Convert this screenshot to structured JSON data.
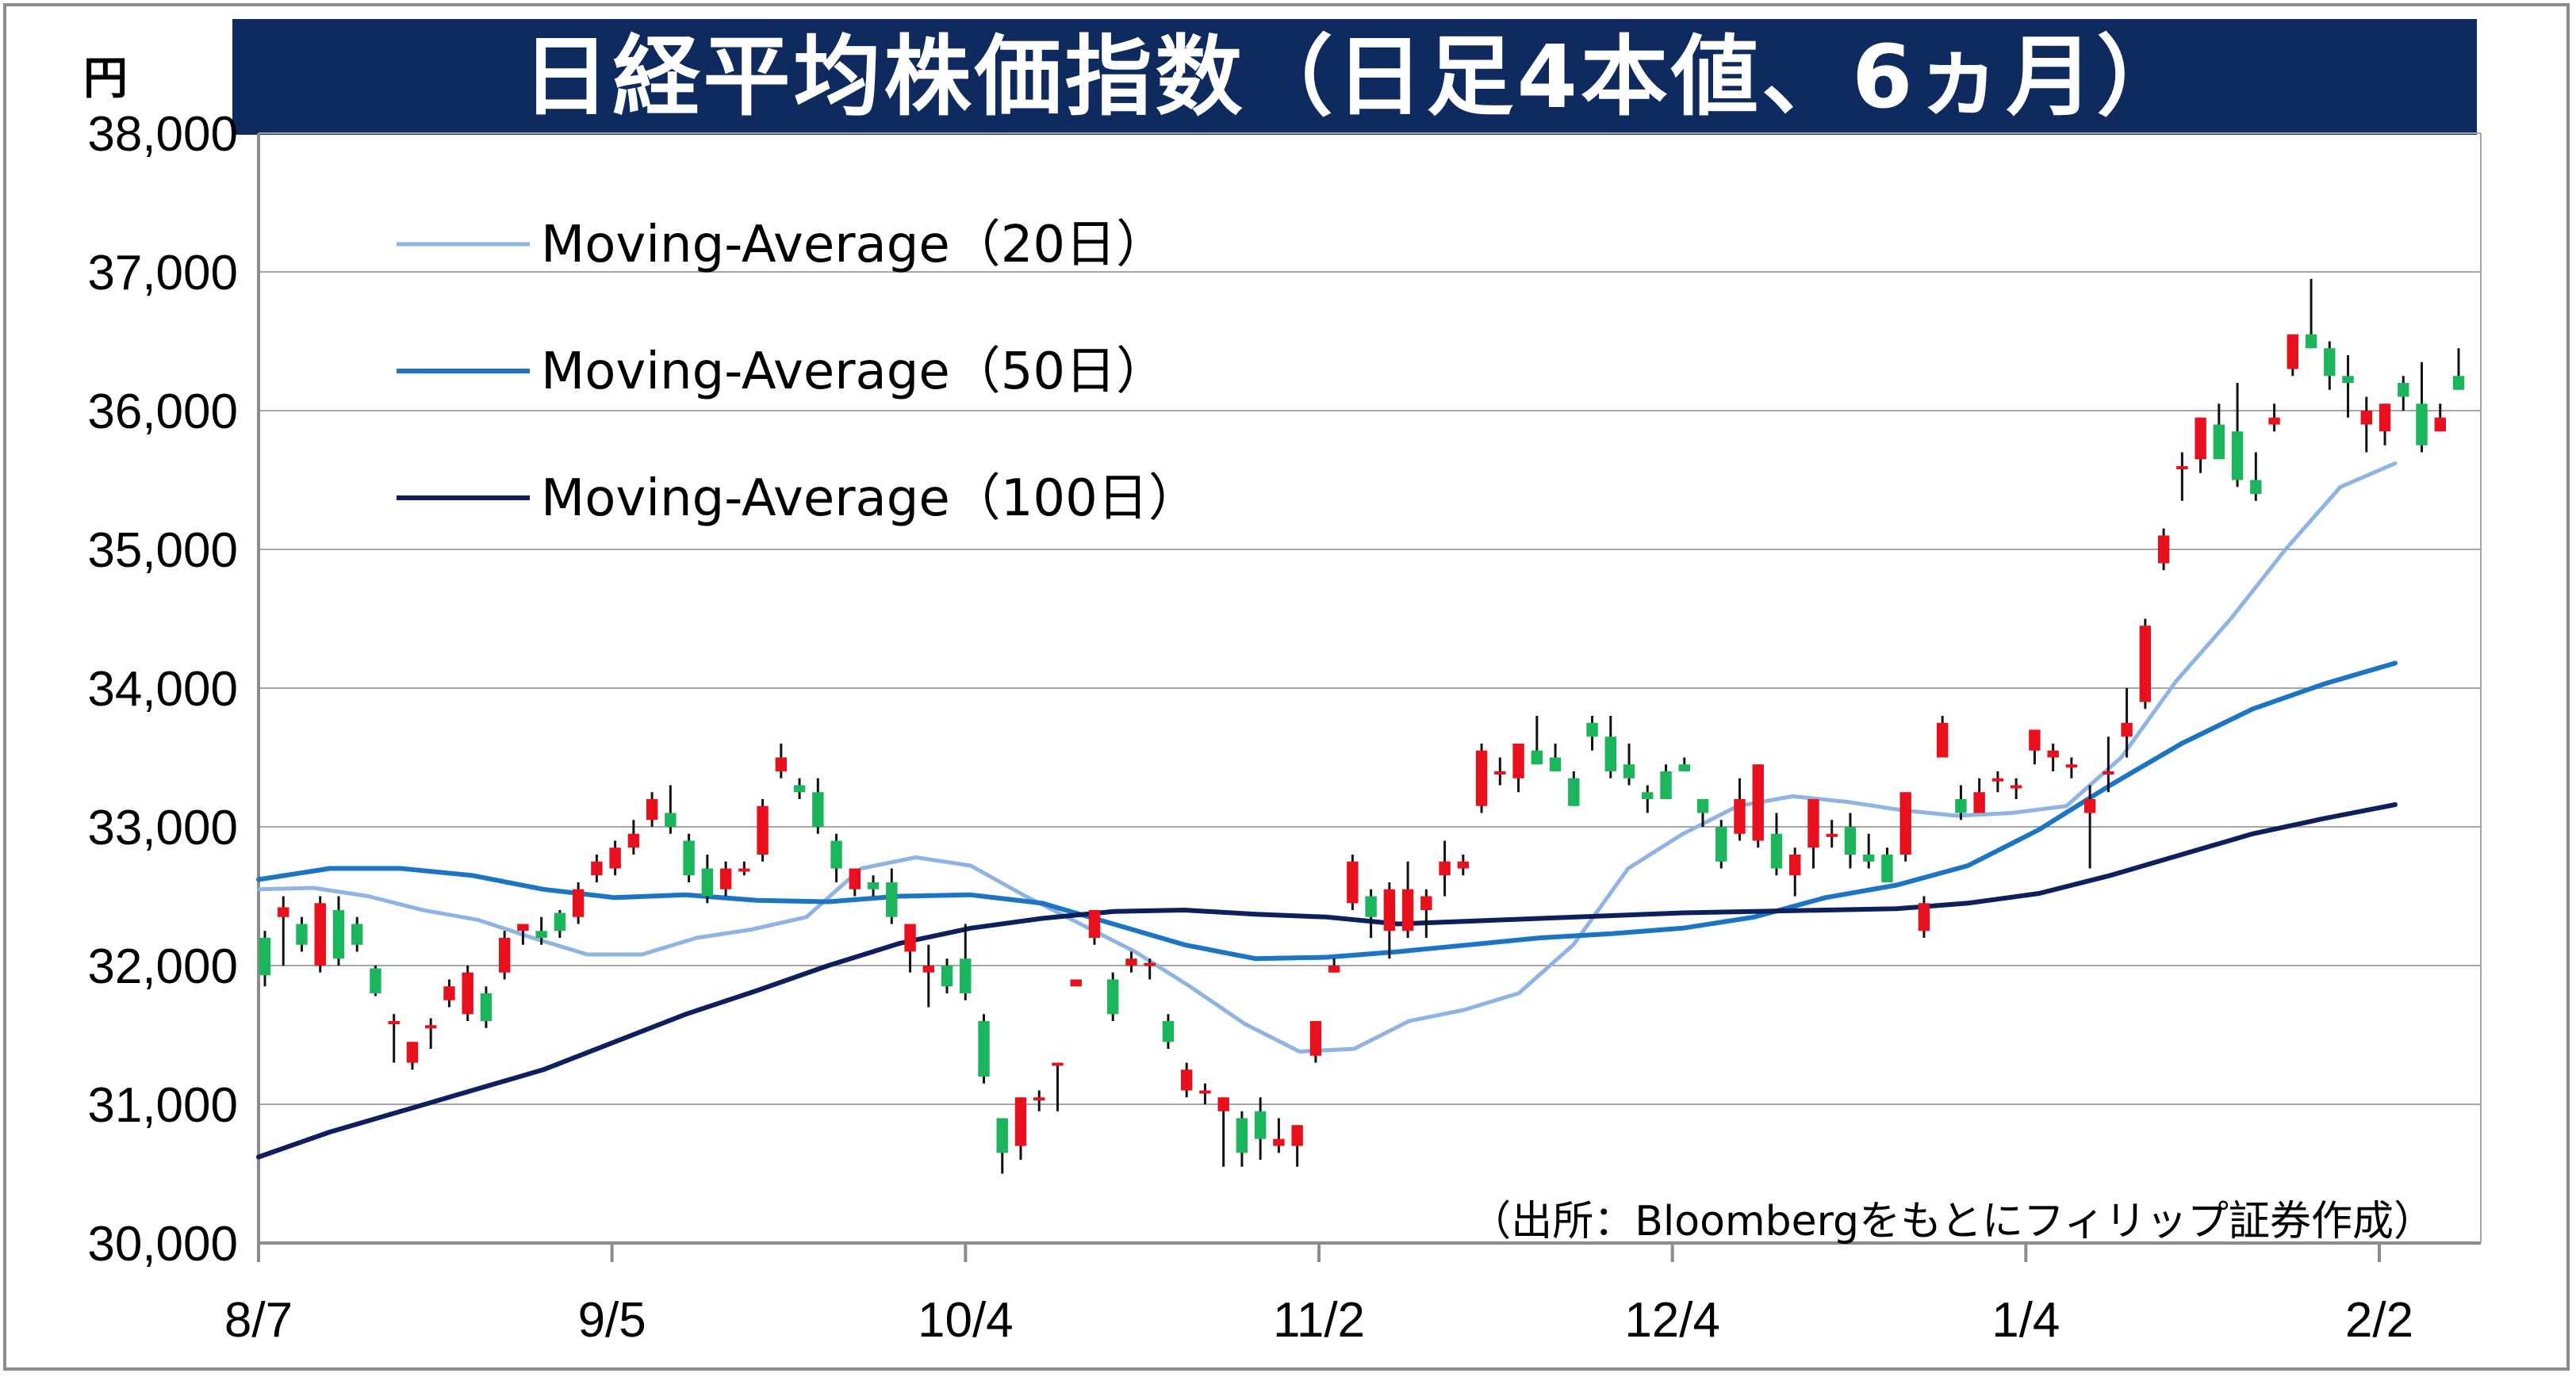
{
  "title": "日経平均株価指数（日足4本値、6ヵ月）",
  "unit": "円",
  "source": "（出所：Bloombergをもとにフィリップ証券作成）",
  "colors": {
    "title_bg": "#0f2a5e",
    "up": "#e8101c",
    "down": "#1bb55c",
    "ma20": "#8fb4e3",
    "ma50": "#1b75c4",
    "ma100": "#0d1f5c",
    "grid": "#a6a6a6"
  },
  "chart_data": {
    "type": "candlestick",
    "title": "日経平均株価指数（日足4本値、6ヵ月）",
    "ylabel": "円",
    "ylim": [
      30000,
      38000
    ],
    "yticks": [
      30000,
      31000,
      32000,
      33000,
      34000,
      35000,
      36000,
      37000,
      38000
    ],
    "ytick_labels": [
      "30,000",
      "31,000",
      "32,000",
      "33,000",
      "34,000",
      "35,000",
      "36,000",
      "37,000",
      "38,000"
    ],
    "xtick_labels": [
      "8/7",
      "9/5",
      "10/4",
      "11/2",
      "12/4",
      "1/4",
      "2/2"
    ],
    "grid": true,
    "legend_position": "top-left",
    "series": [
      {
        "name": "Moving-Average（20日）",
        "color": "#8fb4e3",
        "values": [
          32550,
          32560,
          32500,
          32400,
          32330,
          32200,
          32080,
          32080,
          32200,
          32260,
          32350,
          32700,
          32780,
          32720,
          32500,
          32300,
          32100,
          31850,
          31580,
          31380,
          31400,
          31600,
          31680,
          31800,
          32150,
          32700,
          32950,
          33150,
          33220,
          33180,
          33120,
          33080,
          33100,
          33150,
          33500,
          34050,
          34500,
          35000,
          35450,
          35620
        ]
      },
      {
        "name": "Moving-Average（50日）",
        "color": "#1b75c4",
        "values": [
          32620,
          32700,
          32700,
          32650,
          32550,
          32490,
          32510,
          32470,
          32460,
          32500,
          32510,
          32450,
          32300,
          32150,
          32050,
          32060,
          32100,
          32150,
          32200,
          32230,
          32270,
          32350,
          32490,
          32580,
          32720,
          32980,
          33300,
          33600,
          33850,
          34030,
          34180
        ]
      },
      {
        "name": "Moving-Average（100日）",
        "color": "#0d1f5c",
        "values": [
          30620,
          30800,
          30950,
          31100,
          31250,
          31450,
          31650,
          31820,
          32000,
          32160,
          32270,
          32340,
          32390,
          32400,
          32370,
          32350,
          32300,
          32320,
          32340,
          32360,
          32380,
          32390,
          32400,
          32410,
          32450,
          32520,
          32650,
          32800,
          32950,
          33060,
          33160
        ]
      }
    ],
    "candles": [
      [
        32200,
        32250,
        31850,
        31930
      ],
      [
        32350,
        32500,
        32000,
        32420
      ],
      [
        32300,
        32350,
        32100,
        32150
      ],
      [
        32000,
        32500,
        31950,
        32450
      ],
      [
        32400,
        32500,
        32000,
        32050
      ],
      [
        32300,
        32350,
        32100,
        32150
      ],
      [
        31980,
        32000,
        31780,
        31800
      ],
      [
        31600,
        31650,
        31300,
        31600
      ],
      [
        31300,
        31450,
        31250,
        31450
      ],
      [
        31570,
        31620,
        31400,
        31570
      ],
      [
        31750,
        31900,
        31700,
        31850
      ],
      [
        31650,
        32000,
        31600,
        31950
      ],
      [
        31800,
        31850,
        31550,
        31600
      ],
      [
        31950,
        32250,
        31900,
        32200
      ],
      [
        32250,
        32300,
        32150,
        32300
      ],
      [
        32250,
        32350,
        32150,
        32200
      ],
      [
        32380,
        32400,
        32200,
        32250
      ],
      [
        32350,
        32600,
        32300,
        32550
      ],
      [
        32650,
        32800,
        32600,
        32750
      ],
      [
        32700,
        32900,
        32650,
        32850
      ],
      [
        32850,
        33050,
        32800,
        32950
      ],
      [
        33050,
        33250,
        33000,
        33200
      ],
      [
        33100,
        33300,
        32950,
        33000
      ],
      [
        32900,
        32950,
        32600,
        32650
      ],
      [
        32700,
        32800,
        32450,
        32500
      ],
      [
        32550,
        32750,
        32500,
        32700
      ],
      [
        32700,
        32750,
        32650,
        32700
      ],
      [
        32800,
        33200,
        32750,
        33150
      ],
      [
        33400,
        33600,
        33350,
        33500
      ],
      [
        33300,
        33350,
        33200,
        33250
      ],
      [
        33250,
        33350,
        32950,
        33000
      ],
      [
        32900,
        32950,
        32600,
        32700
      ],
      [
        32550,
        32700,
        32500,
        32700
      ],
      [
        32600,
        32650,
        32500,
        32550
      ],
      [
        32600,
        32700,
        32300,
        32350
      ],
      [
        32100,
        32300,
        31950,
        32300
      ],
      [
        31950,
        32150,
        31700,
        32000
      ],
      [
        32000,
        32050,
        31800,
        31850
      ],
      [
        32050,
        32300,
        31750,
        31800
      ],
      [
        31600,
        31650,
        31150,
        31200
      ],
      [
        30900,
        30900,
        30500,
        30650
      ],
      [
        30700,
        31050,
        30600,
        31050
      ],
      [
        31050,
        31100,
        30950,
        31050
      ],
      [
        31300,
        31300,
        30950,
        31300
      ],
      [
        31850,
        31900,
        31850,
        31900
      ],
      [
        32200,
        32400,
        32150,
        32400
      ],
      [
        31900,
        31950,
        31600,
        31650
      ],
      [
        32000,
        32100,
        31950,
        32050
      ],
      [
        32020,
        32050,
        31900,
        32020
      ],
      [
        31600,
        31650,
        31400,
        31450
      ],
      [
        31100,
        31300,
        31050,
        31250
      ],
      [
        31100,
        31150,
        31000,
        31100
      ],
      [
        30950,
        31050,
        30550,
        31050
      ],
      [
        30900,
        30950,
        30550,
        30650
      ],
      [
        30950,
        31050,
        30600,
        30750
      ],
      [
        30700,
        30900,
        30650,
        30750
      ],
      [
        30700,
        30850,
        30550,
        30850
      ],
      [
        31350,
        31600,
        31300,
        31600
      ],
      [
        31950,
        32050,
        31950,
        32000
      ],
      [
        32450,
        32800,
        32400,
        32750
      ],
      [
        32500,
        32550,
        32200,
        32350
      ],
      [
        32250,
        32600,
        32050,
        32550
      ],
      [
        32250,
        32750,
        32200,
        32550
      ],
      [
        32400,
        32550,
        32200,
        32500
      ],
      [
        32650,
        32900,
        32500,
        32750
      ],
      [
        32700,
        32800,
        32650,
        32750
      ],
      [
        33150,
        33600,
        33100,
        33550
      ],
      [
        33400,
        33500,
        33300,
        33400
      ],
      [
        33350,
        33600,
        33250,
        33600
      ],
      [
        33550,
        33800,
        33450,
        33450
      ],
      [
        33500,
        33600,
        33400,
        33400
      ],
      [
        33350,
        33400,
        33150,
        33150
      ],
      [
        33750,
        33800,
        33550,
        33650
      ],
      [
        33650,
        33800,
        33350,
        33400
      ],
      [
        33450,
        33600,
        33300,
        33350
      ],
      [
        33250,
        33300,
        33100,
        33200
      ],
      [
        33400,
        33450,
        33200,
        33200
      ],
      [
        33450,
        33500,
        33400,
        33400
      ],
      [
        33200,
        33200,
        33000,
        33100
      ],
      [
        33000,
        33050,
        32700,
        32750
      ],
      [
        32950,
        33350,
        32900,
        33200
      ],
      [
        32900,
        33450,
        32850,
        33450
      ],
      [
        32950,
        33100,
        32650,
        32700
      ],
      [
        32650,
        32850,
        32500,
        32800
      ],
      [
        32850,
        33200,
        32700,
        33200
      ],
      [
        32950,
        33050,
        32850,
        32950
      ],
      [
        33000,
        33100,
        32700,
        32800
      ],
      [
        32800,
        32950,
        32700,
        32750
      ],
      [
        32800,
        32850,
        32600,
        32600
      ],
      [
        32800,
        33250,
        32750,
        33250
      ],
      [
        32250,
        32500,
        32200,
        32450
      ],
      [
        33500,
        33800,
        33500,
        33750
      ],
      [
        33200,
        33300,
        33050,
        33100
      ],
      [
        33100,
        33350,
        33100,
        33250
      ],
      [
        33350,
        33400,
        33250,
        33350
      ],
      [
        33300,
        33350,
        33200,
        33300
      ],
      [
        33550,
        33700,
        33450,
        33700
      ],
      [
        33500,
        33600,
        33400,
        33550
      ],
      [
        33450,
        33500,
        33350,
        33450
      ],
      [
        33100,
        33300,
        32700,
        33200
      ],
      [
        33400,
        33650,
        33250,
        33400
      ],
      [
        33650,
        34000,
        33500,
        33750
      ],
      [
        33900,
        34500,
        33850,
        34450
      ],
      [
        34900,
        35150,
        34850,
        35100
      ],
      [
        35600,
        35700,
        35350,
        35600
      ],
      [
        35650,
        35950,
        35550,
        35950
      ],
      [
        35900,
        36050,
        35650,
        35650
      ],
      [
        35850,
        36200,
        35450,
        35500
      ],
      [
        35500,
        35700,
        35350,
        35400
      ],
      [
        35900,
        36050,
        35850,
        35950
      ],
      [
        36300,
        36550,
        36250,
        36550
      ],
      [
        36550,
        36950,
        36450,
        36450
      ],
      [
        36450,
        36500,
        36150,
        36250
      ],
      [
        36250,
        36400,
        35950,
        36200
      ],
      [
        35900,
        36100,
        35700,
        36000
      ],
      [
        35850,
        36050,
        35750,
        36050
      ],
      [
        36200,
        36250,
        36000,
        36100
      ],
      [
        36050,
        36350,
        35700,
        35750
      ],
      [
        35850,
        36050,
        35850,
        35950
      ],
      [
        36250,
        36450,
        36150,
        36150
      ]
    ]
  }
}
